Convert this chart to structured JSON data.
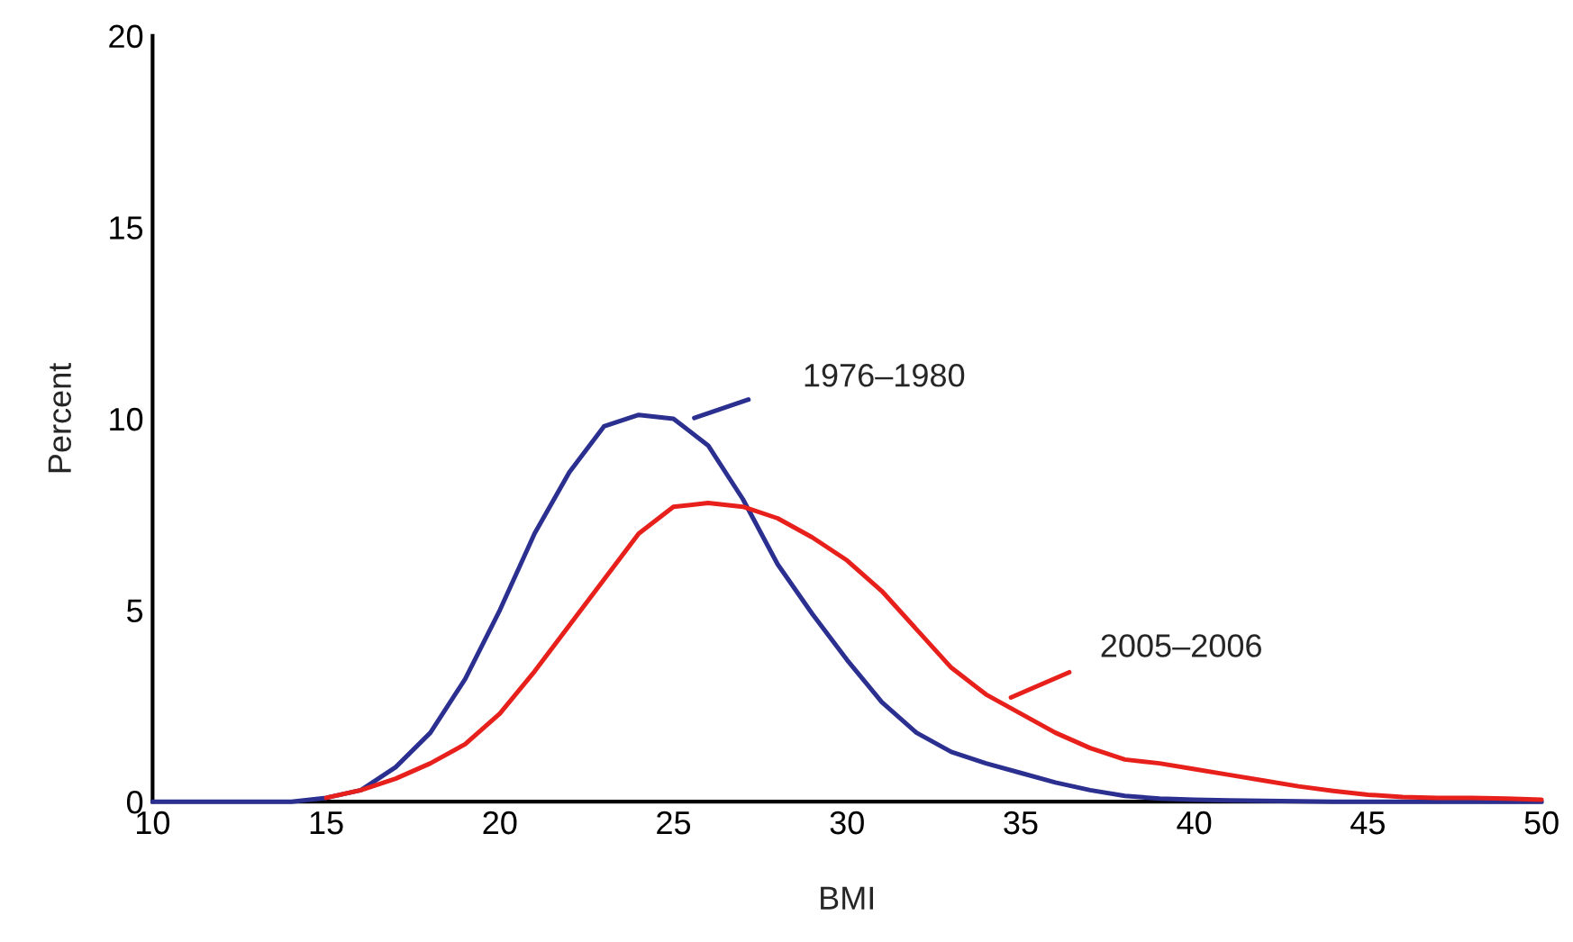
{
  "chart_data": {
    "type": "line",
    "xlabel": "BMI",
    "ylabel": "Percent",
    "xlim": [
      10,
      50
    ],
    "ylim": [
      0,
      20
    ],
    "xticks": [
      10,
      15,
      20,
      25,
      30,
      35,
      40,
      45,
      50
    ],
    "yticks": [
      0,
      5,
      10,
      15,
      20
    ],
    "grid": false,
    "legend": false,
    "marker": "none",
    "line_style": "solid",
    "x": [
      10,
      11,
      12,
      13,
      14,
      15,
      16,
      17,
      18,
      19,
      20,
      21,
      22,
      23,
      24,
      25,
      26,
      27,
      28,
      29,
      30,
      31,
      32,
      33,
      34,
      35,
      36,
      37,
      38,
      39,
      40,
      41,
      42,
      43,
      44,
      45,
      46,
      47,
      48,
      49,
      50
    ],
    "series": [
      {
        "color": "#2b2f8f",
        "values": [
          0,
          0,
          0,
          0,
          0,
          0.1,
          0.3,
          0.9,
          1.8,
          3.2,
          5.0,
          7.0,
          8.6,
          9.8,
          10.1,
          10.0,
          9.3,
          7.9,
          6.2,
          4.9,
          3.7,
          2.6,
          1.8,
          1.3,
          1.0,
          0.75,
          0.5,
          0.3,
          0.15,
          0.08,
          0.05,
          0.03,
          0.02,
          0.01,
          0,
          0,
          0,
          0,
          0,
          0,
          0
        ]
      },
      {
        "color": "#e8201c",
        "values": [
          null,
          null,
          null,
          null,
          null,
          0.1,
          0.3,
          0.6,
          1.0,
          1.5,
          2.3,
          3.4,
          4.6,
          5.8,
          7.0,
          7.7,
          7.8,
          7.7,
          7.4,
          6.9,
          6.3,
          5.5,
          4.5,
          3.5,
          2.8,
          2.3,
          1.8,
          1.4,
          1.1,
          1.0,
          0.85,
          0.7,
          0.55,
          0.4,
          0.28,
          0.18,
          0.12,
          0.1,
          0.1,
          0.08,
          0.05
        ]
      }
    ],
    "annotations": [
      "1976–1980",
      "2005–2006"
    ]
  }
}
